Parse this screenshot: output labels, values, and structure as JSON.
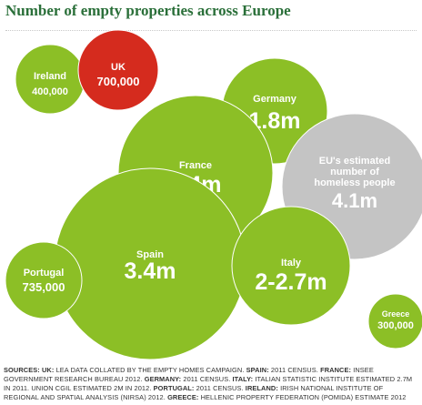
{
  "title": "Number of empty properties across Europe",
  "colors": {
    "green": "#8cbf26",
    "red": "#d52b1e",
    "grey": "#c4c4c4",
    "title": "#2a6f39",
    "label": "#ffffff"
  },
  "chart_data": {
    "type": "bubble",
    "title": "Number of empty properties across Europe",
    "bubbles": [
      {
        "name": "Ireland",
        "value_label": "400,000",
        "value": 400000,
        "color": "green"
      },
      {
        "name": "UK",
        "value_label": "700,000",
        "value": 700000,
        "color": "red"
      },
      {
        "name": "Germany",
        "value_label": "1.8m",
        "value": 1800000,
        "color": "green"
      },
      {
        "name": "France",
        "value_label": "2.4m",
        "value": 2400000,
        "color": "green"
      },
      {
        "name": "EU's estimated number of homeless people",
        "value_label": "4.1m",
        "value": 4100000,
        "color": "grey"
      },
      {
        "name": "Spain",
        "value_label": "3.4m",
        "value": 3400000,
        "color": "green"
      },
      {
        "name": "Portugal",
        "value_label": "735,000",
        "value": 735000,
        "color": "green"
      },
      {
        "name": "Italy",
        "value_label": "2-2.7m",
        "value": 2700000,
        "color": "green"
      },
      {
        "name": "Greece",
        "value_label": "300,000",
        "value": 300000,
        "color": "green"
      }
    ]
  },
  "sources": [
    {
      "k": "SOURCES: ",
      "t": ""
    },
    {
      "k": "UK: ",
      "t": "LEA DATA COLLATED BY THE EMPTY HOMES CAMPAIGN. "
    },
    {
      "k": "SPAIN: ",
      "t": "2011 CENSUS. "
    },
    {
      "k": "FRANCE: ",
      "t": "INSEE GOVERNMENT RESEARCH BUREAU 2012. "
    },
    {
      "k": "GERMANY: ",
      "t": "2011 CENSUS. "
    },
    {
      "k": "ITALY: ",
      "t": "ITALIAN STATISTIC INSTITUTE ESTIMATED 2.7M IN 2011. UNION CGIL ESTIMATED 2M IN 2012. "
    },
    {
      "k": "PORTUGAL: ",
      "t": "2011 CENSUS. "
    },
    {
      "k": "IRELAND: ",
      "t": "IRISH NATIONAL INSTITUTE OF REGIONAL AND SPATIAL ANALYSIS (NIRSA) 2012. "
    },
    {
      "k": "GREECE: ",
      "t": "HELLENIC PROPERTY FEDERATION (POMIDA) ESTIMATE 2012"
    }
  ]
}
